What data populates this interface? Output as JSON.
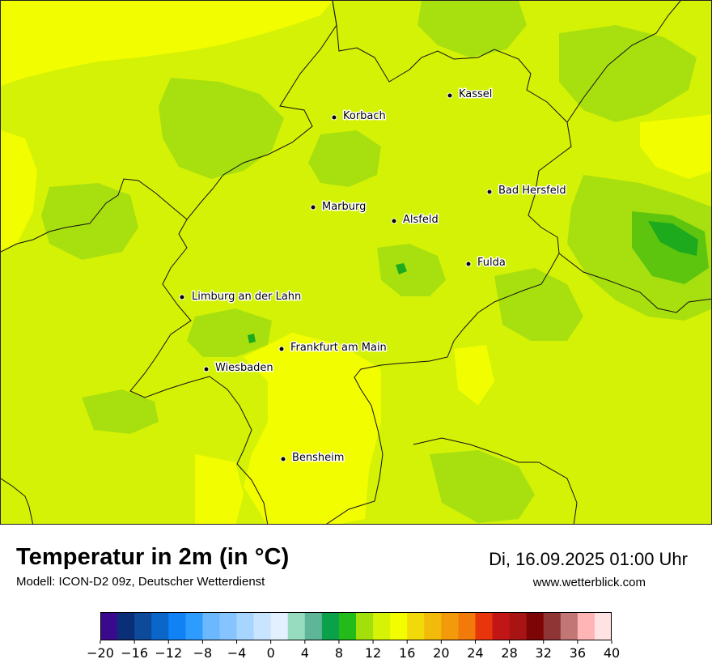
{
  "map": {
    "cities": [
      {
        "name": "Kassel"
      },
      {
        "name": "Korbach"
      },
      {
        "name": "Bad Hersfeld"
      },
      {
        "name": "Marburg"
      },
      {
        "name": "Alsfeld"
      },
      {
        "name": "Fulda"
      },
      {
        "name": "Limburg an der Lahn"
      },
      {
        "name": "Frankfurt am Main"
      },
      {
        "name": "Wiesbaden"
      },
      {
        "name": "Bensheim"
      }
    ],
    "colors": {
      "warm_yellow": "#f2fd00",
      "lime": "#d4f205",
      "light_green": "#a8e00f",
      "green": "#5ec50f",
      "dark_green": "#1daa1d"
    }
  },
  "header": {
    "title": "Temperatur in 2m (in °C)",
    "subtitle": "Modell: ICON-D2 09z, Deutscher Wetterdienst",
    "datetime": "Di, 16.09.2025 01:00 Uhr",
    "website": "www.wetterblick.com"
  },
  "legend": {
    "min": -20,
    "max": 40,
    "step": 2,
    "tick_labels": [
      "−20",
      "−16",
      "−12",
      "−8",
      "−4",
      "0",
      "4",
      "8",
      "12",
      "16",
      "20",
      "24",
      "28",
      "32",
      "36",
      "40"
    ],
    "colors": [
      "#3a0a8c",
      "#0b2e78",
      "#0d4a9a",
      "#0a66c8",
      "#1182f5",
      "#2e9bff",
      "#6bb8ff",
      "#86c4ff",
      "#a7d5ff",
      "#c9e4ff",
      "#e3f0ff",
      "#97dcbf",
      "#5fb598",
      "#0aa14a",
      "#22bb1a",
      "#a2df0b",
      "#d6f205",
      "#f3fd00",
      "#f2d90a",
      "#f2bb0a",
      "#f29a0a",
      "#f27a0a",
      "#e8360c",
      "#c21616",
      "#a81414",
      "#7d0505",
      "#8f3535",
      "#c27676",
      "#ffb5b5",
      "#ffe2e2"
    ]
  }
}
